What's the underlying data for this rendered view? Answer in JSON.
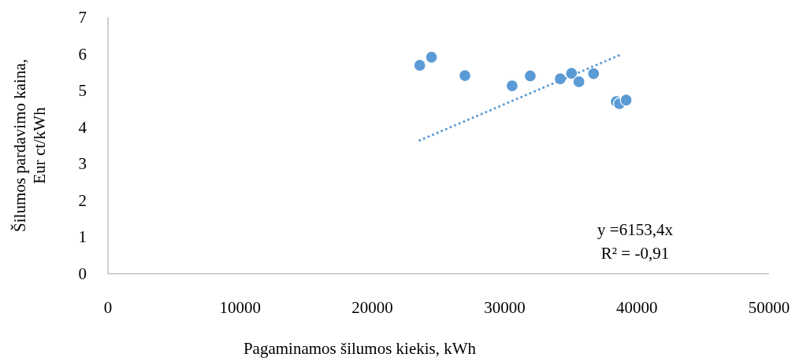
{
  "chart_data": {
    "type": "scatter",
    "xlabel": "Pagaminamos šilumos kiekis, kWh",
    "ylabel": "Šilumos pardavimo kaina, Eur ct/kWh",
    "xlim": [
      0,
      50000
    ],
    "xticks": [
      0,
      10000,
      20000,
      30000,
      40000,
      50000
    ],
    "ylim": [
      0,
      7
    ],
    "yticks": [
      0,
      1,
      2,
      3,
      4,
      5,
      6,
      7
    ],
    "grid": false,
    "marker": "circle",
    "series": [
      {
        "color": "#5b9bd5",
        "x": [
          23580,
          24470,
          27000,
          30570,
          31940,
          34210,
          35060,
          35620,
          36730,
          38440,
          38680,
          39190
        ],
        "values": [
          5.69,
          5.91,
          5.41,
          5.13,
          5.4,
          5.32,
          5.47,
          5.24,
          5.46,
          4.7,
          4.64,
          4.74
        ]
      },
      {
        "type": "line",
        "color": "#5b9bd5",
        "line_style": "dotted",
        "marker": "none",
        "x": [
          23580,
          38840
        ],
        "values": [
          3.64,
          5.99
        ]
      }
    ],
    "annotations": [
      "y =6153,4x",
      "R² = -0,91"
    ]
  }
}
